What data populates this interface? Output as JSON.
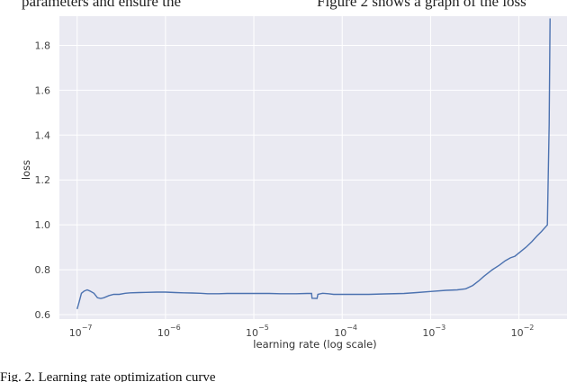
{
  "top_text": {
    "left": "parameters and ensure the",
    "right": "Figure 2 shows a graph of the loss"
  },
  "caption": "Fig. 2.   Learning rate optimization curve",
  "colors": {
    "plot_background": "#eaeaf2",
    "gridline": "#ffffff",
    "series": "#4c72b0"
  },
  "chart_data": {
    "type": "line",
    "title": "",
    "xlabel": "learning rate (log scale)",
    "ylabel": "loss",
    "xscale": "log",
    "xlim": [
      6.3e-08,
      0.035
    ],
    "ylim": [
      0.58,
      1.93
    ],
    "grid": true,
    "x_ticks": [
      {
        "base": "10",
        "exp": "−7",
        "value": 1e-07
      },
      {
        "base": "10",
        "exp": "−6",
        "value": 1e-06
      },
      {
        "base": "10",
        "exp": "−5",
        "value": 1e-05
      },
      {
        "base": "10",
        "exp": "−4",
        "value": 0.0001
      },
      {
        "base": "10",
        "exp": "−3",
        "value": 0.001
      },
      {
        "base": "10",
        "exp": "−2",
        "value": 0.01
      }
    ],
    "y_ticks": [
      "0.6",
      "0.8",
      "1.0",
      "1.2",
      "1.4",
      "1.6",
      "1.8"
    ],
    "series": [
      {
        "x": [
          1e-07,
          1.06e-07,
          1.12e-07,
          1.2e-07,
          1.3e-07,
          1.4e-07,
          1.55e-07,
          1.7e-07,
          1.85e-07,
          2e-07,
          2.3e-07,
          2.6e-07,
          3e-07,
          3.5e-07,
          4e-07,
          5e-07,
          6e-07,
          8e-07,
          1e-06,
          1.3e-06,
          1.6e-06,
          2e-06,
          2.5e-06,
          3e-06,
          4e-06,
          5e-06,
          7e-06,
          1e-05,
          1.5e-05,
          2e-05,
          3e-05,
          4e-05,
          4.5e-05,
          4.55e-05,
          5.2e-05,
          5.3e-05,
          6e-05,
          7e-05,
          8e-05,
          0.0001,
          0.00015,
          0.0002,
          0.0003,
          0.0005,
          0.0007,
          0.001,
          0.0015,
          0.002,
          0.0025,
          0.003,
          0.0035,
          0.004,
          0.005,
          0.006,
          0.007,
          0.008,
          0.009,
          0.01,
          0.012,
          0.014,
          0.016,
          0.018,
          0.021,
          0.022,
          0.0225
        ],
        "y": [
          0.625,
          0.66,
          0.695,
          0.705,
          0.71,
          0.705,
          0.695,
          0.675,
          0.672,
          0.675,
          0.685,
          0.69,
          0.69,
          0.695,
          0.697,
          0.698,
          0.699,
          0.7,
          0.7,
          0.698,
          0.697,
          0.696,
          0.695,
          0.693,
          0.693,
          0.694,
          0.694,
          0.694,
          0.694,
          0.693,
          0.693,
          0.694,
          0.694,
          0.673,
          0.672,
          0.69,
          0.695,
          0.693,
          0.69,
          0.69,
          0.69,
          0.69,
          0.692,
          0.694,
          0.698,
          0.703,
          0.708,
          0.71,
          0.715,
          0.73,
          0.75,
          0.77,
          0.8,
          0.82,
          0.84,
          0.853,
          0.86,
          0.875,
          0.9,
          0.925,
          0.95,
          0.97,
          1.0,
          1.45,
          1.92
        ]
      }
    ]
  }
}
